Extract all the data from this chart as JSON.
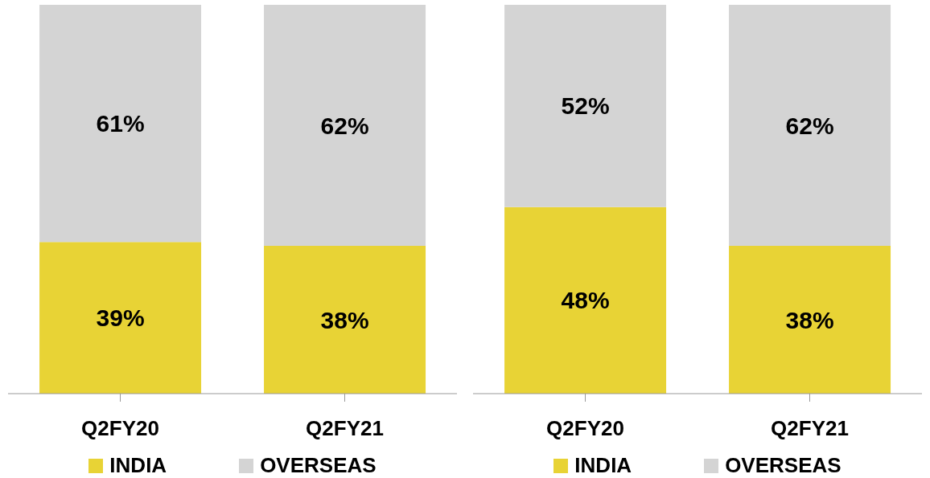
{
  "chart_data": [
    {
      "type": "bar",
      "stacked": true,
      "categories": [
        "Q2FY20",
        "Q2FY21"
      ],
      "ylim": [
        0,
        100
      ],
      "tick_labels": "x",
      "legend": "bottom",
      "grid": false,
      "series": [
        {
          "name": "INDIA",
          "color": "#e8d335",
          "values": [
            39,
            38
          ],
          "value_labels": [
            "39%",
            "38%"
          ]
        },
        {
          "name": "OVERSEAS",
          "color": "#d4d4d4",
          "values": [
            61,
            62
          ],
          "value_labels": [
            "61%",
            "62%"
          ]
        }
      ]
    },
    {
      "type": "bar",
      "stacked": true,
      "categories": [
        "Q2FY20",
        "Q2FY21"
      ],
      "ylim": [
        0,
        100
      ],
      "tick_labels": "x",
      "legend": "bottom",
      "grid": false,
      "series": [
        {
          "name": "INDIA",
          "color": "#e8d335",
          "values": [
            48,
            38
          ],
          "value_labels": [
            "48%",
            "38%"
          ]
        },
        {
          "name": "OVERSEAS",
          "color": "#d4d4d4",
          "values": [
            52,
            62
          ],
          "value_labels": [
            "52%",
            "62%"
          ]
        }
      ]
    }
  ]
}
